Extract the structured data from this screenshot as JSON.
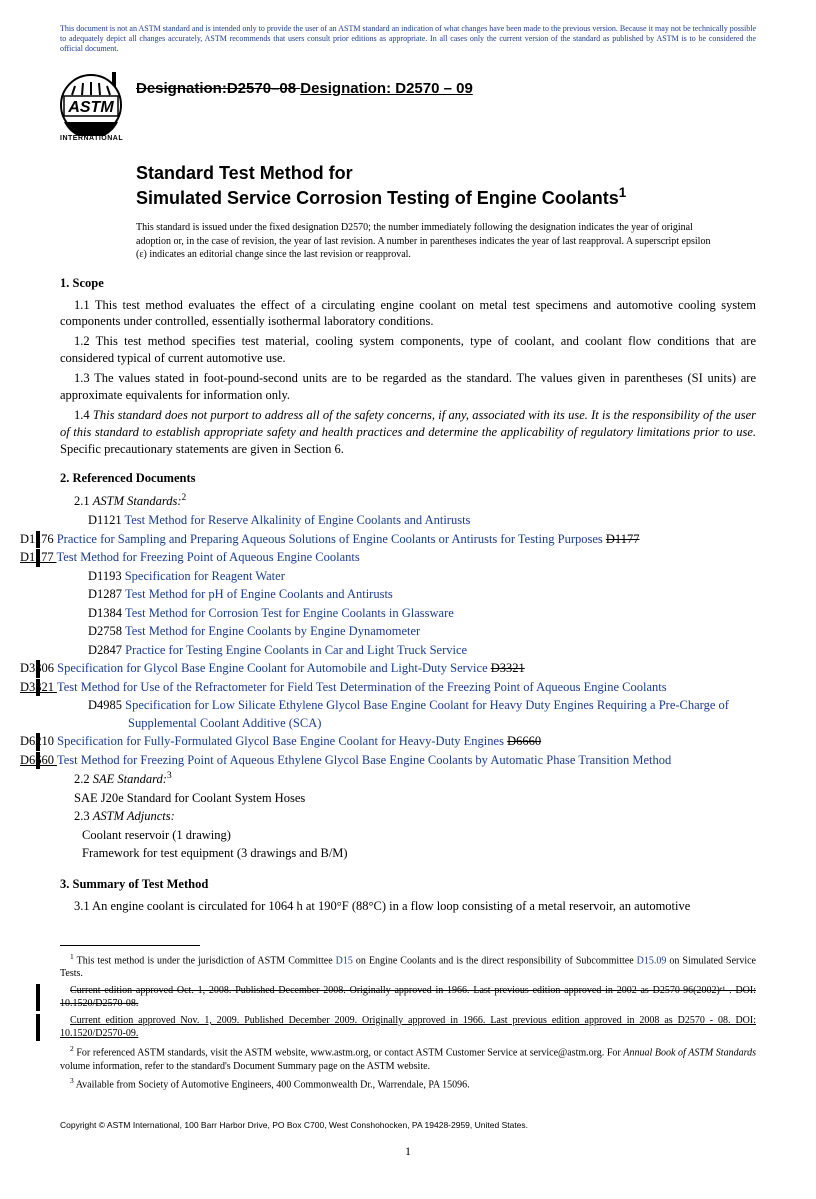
{
  "disclaimer_top": "This document is not an ASTM standard and is intended only to provide the user of an ASTM standard an indication of what changes have been made to the previous version. Because it may not be technically possible to adequately depict all changes accurately, ASTM recommends that users consult prior editions as appropriate. In all cases only the current version of the standard as published by ASTM is to be considered the official document.",
  "logo_text": "ASTM",
  "logo_band": "INTERNATIONAL",
  "designation_strike": "Designation:D2570–08 ",
  "designation_new": "Designation: D2570 – 09",
  "title_line1": "Standard Test Method for",
  "title_line2": "Simulated Service Corrosion Testing of Engine Coolants",
  "issued_note": "This standard is issued under the fixed designation D2570; the number immediately following the designation indicates the year of original adoption or, in the case of revision, the year of last revision. A number in parentheses indicates the year of last reapproval. A superscript epsilon (ε) indicates an editorial change since the last revision or reapproval.",
  "scope_head": "1. Scope",
  "scope": {
    "p1": "1.1 This test method evaluates the effect of a circulating engine coolant on metal test specimens and automotive cooling system components under controlled, essentially isothermal laboratory conditions.",
    "p2": "1.2 This test method specifies test material, cooling system components, type of coolant, and coolant flow conditions that are considered typical of current automotive use.",
    "p3": "1.3 The values stated in foot-pound-second units are to be regarded as the standard. The values given in parentheses (SI units) are approximate equivalents for information only.",
    "p4a": "1.4 ",
    "p4b": "This standard does not purport to address all of the safety concerns, if any, associated with its use. It is the responsibility of the user of this standard to establish appropriate safety and health practices and determine the applicability of regulatory limitations prior to use.",
    "p4c": " Specific precautionary statements are given in Section 6."
  },
  "refdocs_head": "2. Referenced Documents",
  "ref_21_label": "2.1 ",
  "ref_21_ital": "ASTM Standards:",
  "refs": [
    {
      "code": "D1121",
      "text": "Test Method for Reserve Alkalinity of Engine Coolants and Antirusts",
      "change": false
    },
    {
      "code": "D1176",
      "text": "Practice for Sampling and Preparing Aqueous Solutions of Engine Coolants or Antirusts for Testing Purposes",
      "strike_after": "D1177",
      "change": true
    },
    {
      "code": "D1177",
      "text": "Test Method for Freezing Point of Aqueous Engine Coolants",
      "underline_code": true,
      "change": true
    },
    {
      "code": "D1193",
      "text": "Specification for Reagent Water",
      "change": false
    },
    {
      "code": "D1287",
      "text": "Test Method for pH of Engine Coolants and Antirusts",
      "change": false
    },
    {
      "code": "D1384",
      "text": "Test Method for Corrosion Test for Engine Coolants in Glassware",
      "change": false
    },
    {
      "code": "D2758",
      "text": "Test Method for Engine Coolants by Engine Dynamometer",
      "change": false
    },
    {
      "code": "D2847",
      "text": "Practice for Testing Engine Coolants in Car and Light Truck Service",
      "change": false
    },
    {
      "code": "D3306",
      "text": "Specification for Glycol Base Engine Coolant for Automobile and Light-Duty Service",
      "strike_after": "D3321",
      "change": true
    },
    {
      "code": "D3321",
      "text": "Test Method for Use of the Refractometer for Field Test Determination of the Freezing Point of Aqueous Engine Coolants",
      "underline_code": true,
      "change": true
    },
    {
      "code": "D4985",
      "text": "Specification for Low Silicate Ethylene Glycol Base Engine Coolant for Heavy Duty Engines Requiring a Pre-Charge of Supplemental Coolant Additive (SCA)",
      "change": false
    },
    {
      "code": "D6210",
      "text": "Specification for Fully-Formulated Glycol Base Engine Coolant for Heavy-Duty Engines",
      "strike_after": "D6660",
      "change": true
    },
    {
      "code": "D6660",
      "text": "Test Method for Freezing Point of Aqueous Ethylene Glycol Base Engine Coolants by Automatic Phase Transition Method",
      "underline_code": true,
      "change": true
    }
  ],
  "ref_22_label": "2.2 ",
  "ref_22_ital": "SAE Standard:",
  "sae_line": "SAE J20e  Standard for Coolant System Hoses",
  "ref_23_label": "2.3 ",
  "ref_23_ital": "ASTM Adjuncts:",
  "adj1": "Coolant reservoir (1 drawing)",
  "adj2": "Framework for test equipment (3 drawings and B/M)",
  "summary_head": "3. Summary of Test Method",
  "summary_p1": "3.1 An engine coolant is circulated for 1064 h at 190°F (88°C) in a flow loop consisting of a metal reservoir, an automotive",
  "footnotes": {
    "f1a": " This test method is under the jurisdiction of ASTM Committee ",
    "f1_link1": "D15",
    "f1b": " on Engine Coolants and is the direct responsibility of Subcommittee ",
    "f1_link2": "D15.09",
    "f1c": " on Simulated Service Tests.",
    "f1_strike": "Current edition approved Oct. 1, 2008. Published December 2008. Originally approved in 1966. Last previous edition approved in 2002 as D2570-96(2002)ᵉ¹ . DOI: 10.1520/D2570-08.",
    "f1_new": "Current edition approved Nov. 1, 2009. Published December 2009. Originally approved in 1966. Last previous edition approved in 2008 as D2570 - 08. DOI: 10.1520/D2570-09.",
    "f2": " For referenced ASTM standards, visit the ASTM website, www.astm.org, or contact ASTM Customer Service at service@astm.org. For ",
    "f2_ital": "Annual Book of ASTM Standards",
    "f2b": " volume information, refer to the standard's Document Summary page on the ASTM website.",
    "f3": " Available from Society of Automotive Engineers, 400 Commonwealth Dr., Warrendale, PA 15096."
  },
  "copyright_line": "Copyright © ASTM International, 100 Barr Harbor Drive, PO Box C700, West Conshohocken, PA 19428-2959, United States.",
  "page_num": "1",
  "colors": {
    "link": "#1a3d8f"
  }
}
